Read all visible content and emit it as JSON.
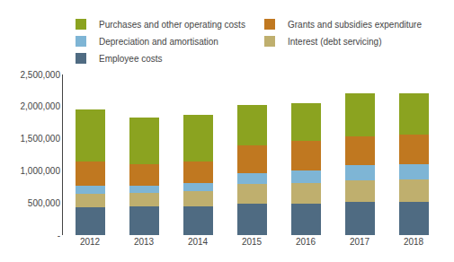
{
  "chart_data": {
    "type": "bar",
    "stacked": true,
    "categories": [
      "2012",
      "2013",
      "2014",
      "2015",
      "2016",
      "2017",
      "2018"
    ],
    "series": [
      {
        "name": "Employee costs",
        "color": "#4f6b82",
        "values": [
          440000,
          445000,
          450000,
          490000,
          495000,
          510000,
          515000
        ]
      },
      {
        "name": "Interest (debt servicing)",
        "color": "#bfaf6e",
        "values": [
          200000,
          210000,
          230000,
          300000,
          320000,
          340000,
          345000
        ]
      },
      {
        "name": "Depreciation and amortisation",
        "color": "#7eb5d5",
        "values": [
          130000,
          120000,
          130000,
          180000,
          195000,
          240000,
          245000
        ]
      },
      {
        "name": "Grants and subsidies expenditure",
        "color": "#c07820",
        "values": [
          380000,
          330000,
          340000,
          430000,
          450000,
          450000,
          455000
        ]
      },
      {
        "name": "Purchases and other operating costs",
        "color": "#8ba320",
        "values": [
          800000,
          720000,
          720000,
          620000,
          600000,
          660000,
          650000
        ]
      }
    ],
    "ylim": [
      0,
      2500000
    ],
    "yticks": [
      {
        "value": 0,
        "label": "-"
      },
      {
        "value": 500000,
        "label": "500,000"
      },
      {
        "value": 1000000,
        "label": "1,000,000"
      },
      {
        "value": 1500000,
        "label": "1,500,000"
      },
      {
        "value": 2000000,
        "label": "2,000,000"
      },
      {
        "value": 2500000,
        "label": "2,500,000"
      }
    ],
    "grid": false,
    "legend": "top"
  }
}
